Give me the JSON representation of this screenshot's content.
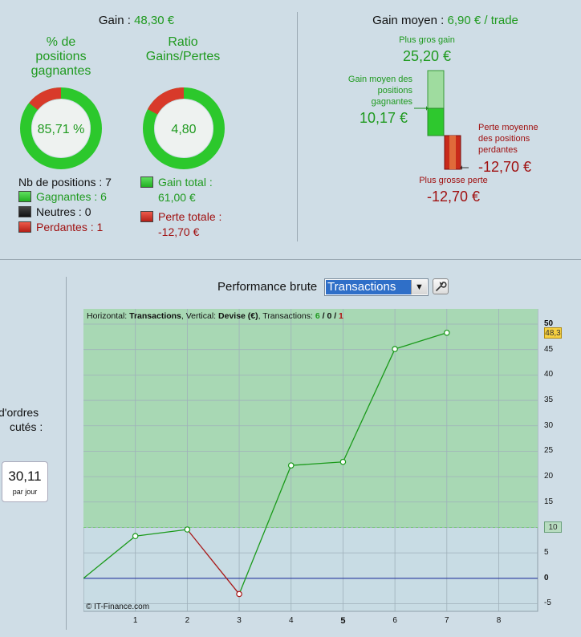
{
  "gain": {
    "label": "Gain :",
    "value": "48,30 €"
  },
  "ring1": {
    "title_line1": "% de",
    "title_line2": "positions",
    "title_line3": "gagnantes",
    "value": "85,71 %",
    "fraction": 0.8571
  },
  "ring2": {
    "title_line1": "Ratio",
    "title_line2": "Gains/Pertes",
    "value": "4,80",
    "fraction": 0.8276
  },
  "positions": {
    "count_label": "Nb de positions : 7",
    "winners": "Gagnantes : 6",
    "neutral": "Neutres : 0",
    "losers": "Perdantes : 1"
  },
  "totals": {
    "gain_label": "Gain total :",
    "gain_value": "61,00 €",
    "loss_label": "Perte totale :",
    "loss_value": "-12,70 €"
  },
  "avg": {
    "label": "Gain moyen :",
    "value": "6,90 € / trade",
    "best_label": "Plus gros gain",
    "best_value": "25,20 €",
    "avg_win_line1": "Gain moyen des",
    "avg_win_line2": "positions",
    "avg_win_line3": "gagnantes",
    "avg_win_value": "10,17 €",
    "avg_loss_line1": "Perte moyenne",
    "avg_loss_line2": "des positions",
    "avg_loss_line3": "perdantes",
    "avg_loss_value": "-12,70 €",
    "worst_label": "Plus grosse perte",
    "worst_value": "-12,70 €"
  },
  "orders": {
    "line1": "d'ordres",
    "line2": "cutés :",
    "value": "30,11",
    "unit": "par jour"
  },
  "performance": {
    "label": "Performance brute",
    "selected": "Transactions"
  },
  "chart_data": {
    "type": "line",
    "header_h_label": "Horizontal:",
    "header_h_value": "Transactions",
    "header_v_label": ", Vertical:",
    "header_v_value": "Devise (€)",
    "header_t_label": ", Transactions:",
    "header_t_win": "6",
    "header_t_sep1": " / ",
    "header_t_neutral": "0",
    "header_t_sep2": " / ",
    "header_t_loss": "1",
    "x": [
      0,
      1,
      2,
      3,
      4,
      5,
      6,
      7
    ],
    "y": [
      0,
      8.3,
      9.6,
      -3.1,
      22.2,
      22.9,
      45.1,
      48.3
    ],
    "xlim": [
      0,
      8.75
    ],
    "ylim": [
      -6.5,
      53
    ],
    "x_ticks": [
      "1",
      "2",
      "3",
      "4",
      "5",
      "6",
      "7",
      "8"
    ],
    "y_ticks": [
      "-5",
      "0",
      "5",
      "10",
      "15",
      "20",
      "25",
      "30",
      "35",
      "40",
      "45",
      "50"
    ],
    "y_tick_values": [
      -5,
      0,
      5,
      10,
      15,
      20,
      25,
      30,
      35,
      40,
      45,
      50
    ],
    "threshold": 10,
    "threshold_label": "10",
    "last_value_label": "48,3",
    "last_value": 48.3,
    "copyright": "© IT-Finance.com",
    "colors": {
      "up": "#1a9a1a",
      "down": "#a81818",
      "zero": "#1a2a9a",
      "zone": "#a8d8b4"
    }
  }
}
